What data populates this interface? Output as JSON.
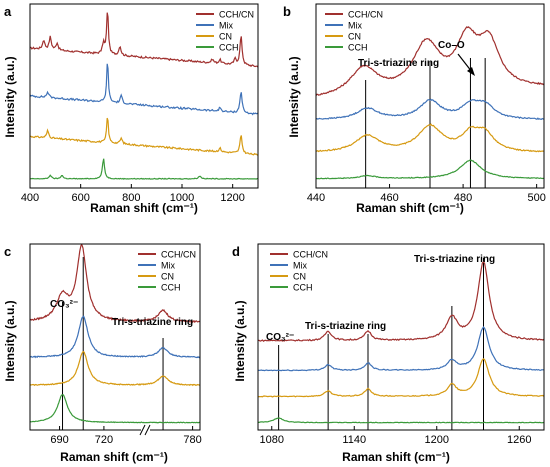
{
  "colors": {
    "CCH/CN": "#a0302e",
    "Mix": "#3f72b8",
    "CN": "#d69a12",
    "CCH": "#3a9a3a",
    "axis": "#000000"
  },
  "chart_data": [
    {
      "panel_label": "a",
      "type": "line",
      "xlabel": "Raman shift (cm⁻¹)",
      "ylabel": "Intensity (a.u.)",
      "xlim": [
        400,
        1300
      ],
      "xticks": [
        "400",
        "600",
        "800",
        "1000",
        "1200"
      ],
      "legend": [
        "CCH/CN",
        "Mix",
        "CN",
        "CCH"
      ],
      "legend_position": "top-right",
      "series": [
        {
          "name": "CCH/CN",
          "base": 0.76,
          "slope": -0.1,
          "noise": 0.01,
          "peaks": [
            [
              454,
              0.05,
              5
            ],
            [
              480,
              0.07,
              5
            ],
            [
              507,
              0.04,
              5
            ],
            [
              690,
              0.06,
              5
            ],
            [
              706,
              0.25,
              4
            ],
            [
              755,
              0.05,
              5
            ],
            [
              1120,
              0.02,
              5
            ],
            [
              1150,
              0.02,
              5
            ],
            [
              1210,
              0.03,
              5
            ],
            [
              1233,
              0.16,
              5
            ]
          ]
        },
        {
          "name": "Mix",
          "base": 0.5,
          "slope": -0.1,
          "noise": 0.01,
          "peaks": [
            [
              470,
              0.03,
              5
            ],
            [
              706,
              0.23,
              4
            ],
            [
              760,
              0.04,
              5
            ],
            [
              1150,
              0.02,
              5
            ],
            [
              1233,
              0.12,
              5
            ]
          ]
        },
        {
          "name": "CN",
          "base": 0.28,
          "slope": -0.1,
          "noise": 0.009,
          "peaks": [
            [
              470,
              0.04,
              5
            ],
            [
              706,
              0.15,
              4
            ],
            [
              760,
              0.03,
              5
            ],
            [
              1150,
              0.02,
              5
            ],
            [
              1233,
              0.1,
              5
            ]
          ]
        },
        {
          "name": "CCH",
          "base": 0.05,
          "slope": 0.0,
          "noise": 0.004,
          "peaks": [
            [
              480,
              0.02,
              5
            ],
            [
              526,
              0.02,
              5
            ],
            [
              690,
              0.11,
              5
            ],
            [
              1070,
              0.015,
              6
            ]
          ]
        }
      ]
    },
    {
      "panel_label": "b",
      "type": "line",
      "xlabel": "Raman shift (cm⁻¹)",
      "ylabel": "Intensity (a.u.)",
      "xlim": [
        440,
        502
      ],
      "xticks": [
        "440",
        "460",
        "480",
        "500"
      ],
      "legend": [
        "CCH/CN",
        "Mix",
        "CN",
        "CCH"
      ],
      "legend_position": "top-left",
      "annotations": [
        "Tri-s-triazine ring",
        "Co–O"
      ],
      "marker_lines": [
        453.5,
        471,
        482,
        486
      ],
      "series": [
        {
          "name": "CCH/CN",
          "base": 0.48,
          "slope": 0.06,
          "noise": 0.008,
          "peaks": [
            [
              453,
              0.15,
              4.5
            ],
            [
              470,
              0.26,
              4.5
            ],
            [
              481,
              0.25,
              3.5
            ],
            [
              487,
              0.24,
              3.5
            ]
          ]
        },
        {
          "name": "Mix",
          "base": 0.37,
          "slope": 0.0,
          "noise": 0.006,
          "peaks": [
            [
              454,
              0.06,
              3.5
            ],
            [
              471,
              0.1,
              3.5
            ],
            [
              482,
              0.07,
              3
            ],
            [
              486,
              0.07,
              3
            ]
          ]
        },
        {
          "name": "CN",
          "base": 0.19,
          "slope": 0.0,
          "noise": 0.006,
          "peaks": [
            [
              454,
              0.09,
              4
            ],
            [
              471,
              0.14,
              4
            ],
            [
              482,
              0.09,
              3
            ],
            [
              486,
              0.09,
              3
            ]
          ]
        },
        {
          "name": "CCH",
          "base": 0.05,
          "slope": 0.0,
          "noise": 0.004,
          "peaks": [
            [
              454,
              0.015,
              3
            ],
            [
              482,
              0.1,
              3.5
            ]
          ]
        }
      ]
    },
    {
      "panel_label": "c",
      "type": "line",
      "xlabel": "Raman shift (cm⁻¹)",
      "ylabel": "Intensity (a.u.)",
      "xlim": [
        670,
        785
      ],
      "xticks": [
        "690",
        "720",
        "780"
      ],
      "axis_break": true,
      "legend": [
        "CCH/CN",
        "Mix",
        "CN",
        "CCH"
      ],
      "legend_position": "top-right",
      "annotations": [
        "CO₃²⁻",
        "Tri-s-triazine ring"
      ],
      "marker_lines": [
        692,
        706,
        760
      ],
      "series": [
        {
          "name": "CCH/CN",
          "base": 0.58,
          "slope": 0.0,
          "noise": 0.008,
          "peaks": [
            [
              692,
              0.13,
              5
            ],
            [
              705,
              0.4,
              4
            ],
            [
              760,
              0.06,
              4
            ]
          ]
        },
        {
          "name": "Mix",
          "base": 0.39,
          "slope": 0.0,
          "noise": 0.005,
          "peaks": [
            [
              706,
              0.22,
              4
            ],
            [
              760,
              0.05,
              4
            ]
          ]
        },
        {
          "name": "CN",
          "base": 0.24,
          "slope": 0.0,
          "noise": 0.005,
          "peaks": [
            [
              706,
              0.18,
              4
            ],
            [
              760,
              0.05,
              4
            ]
          ]
        },
        {
          "name": "CCH",
          "base": 0.04,
          "slope": 0.0,
          "noise": 0.003,
          "peaks": [
            [
              692,
              0.15,
              4
            ]
          ]
        }
      ]
    },
    {
      "panel_label": "d",
      "type": "line",
      "xlabel": "Raman shift (cm⁻¹)",
      "ylabel": "Intensity (a.u.)",
      "xlim": [
        1070,
        1278
      ],
      "xticks": [
        "1080",
        "1140",
        "1200",
        "1260"
      ],
      "legend": [
        "CCH/CN",
        "Mix",
        "CN",
        "CCH"
      ],
      "legend_position": "top-left",
      "annotations": [
        "CO₃²⁻",
        "Tri-s-triazine ring",
        "Tri-s-triazine ring"
      ],
      "marker_lines": [
        1085,
        1121,
        1150,
        1211,
        1234
      ],
      "series": [
        {
          "name": "CCH/CN",
          "base": 0.48,
          "slope": 0.0,
          "noise": 0.007,
          "peaks": [
            [
              1121,
              0.05,
              3
            ],
            [
              1150,
              0.05,
              3
            ],
            [
              1211,
              0.12,
              5
            ],
            [
              1234,
              0.42,
              5
            ]
          ]
        },
        {
          "name": "Mix",
          "base": 0.32,
          "slope": 0.0,
          "noise": 0.005,
          "peaks": [
            [
              1121,
              0.03,
              3
            ],
            [
              1150,
              0.04,
              3
            ],
            [
              1211,
              0.05,
              4
            ],
            [
              1234,
              0.23,
              5
            ]
          ]
        },
        {
          "name": "CN",
          "base": 0.18,
          "slope": 0.0,
          "noise": 0.005,
          "peaks": [
            [
              1121,
              0.03,
              3
            ],
            [
              1150,
              0.04,
              3
            ],
            [
              1211,
              0.06,
              4
            ],
            [
              1234,
              0.2,
              5
            ]
          ]
        },
        {
          "name": "CCH",
          "base": 0.04,
          "slope": 0.0,
          "noise": 0.003,
          "peaks": [
            [
              1085,
              0.025,
              4
            ]
          ]
        }
      ]
    }
  ]
}
